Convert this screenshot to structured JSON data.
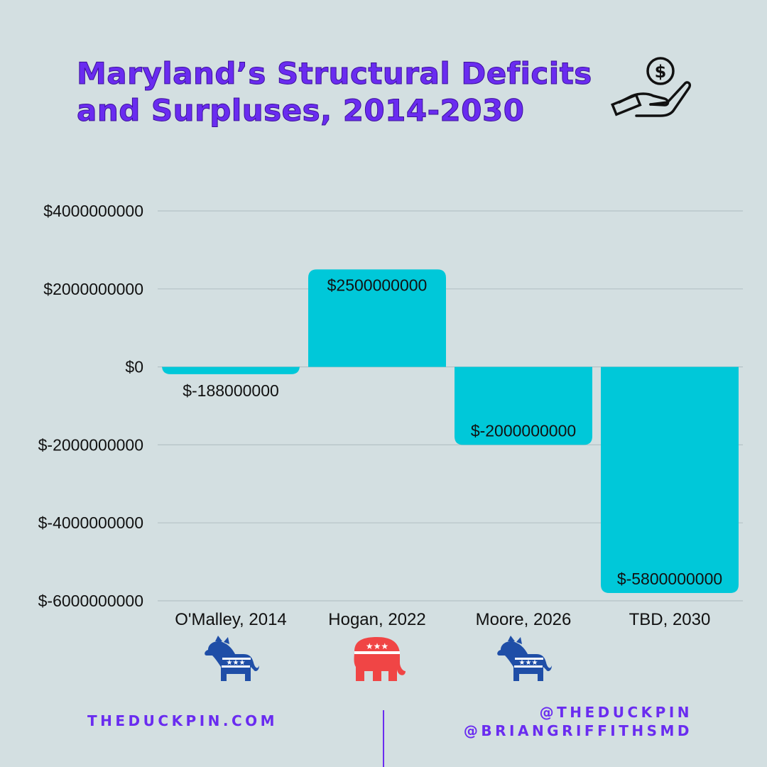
{
  "title": "Maryland’s Structural Deficits and Surpluses, 2014-2030",
  "icons": {
    "header_icon": "hand-holding-coin-icon",
    "democrat_icon": "democrat-donkey-icon",
    "republican_icon": "republican-elephant-icon"
  },
  "colors": {
    "background": "#d3dfe1",
    "title": "#6a2cf0",
    "bar": "#00c8d9",
    "democrat": "#1f4ea7",
    "republican": "#f04545",
    "accent": "#6a2cf0"
  },
  "chart_data": {
    "type": "bar",
    "categories": [
      "O'Malley, 2014",
      "Hogan, 2022",
      "Moore, 2026",
      "TBD, 2030"
    ],
    "values": [
      -188000000,
      2500000000,
      -2000000000,
      -5800000000
    ],
    "data_labels": [
      "$-188000000",
      "$2500000000",
      "$-2000000000",
      "$-5800000000"
    ],
    "yticks": [
      4000000000,
      2000000000,
      0,
      -2000000000,
      -4000000000,
      -6000000000
    ],
    "ytick_labels": [
      "$4000000000",
      "$2000000000",
      "$0",
      "$-2000000000",
      "$-4000000000",
      "$-6000000000"
    ],
    "ylim": [
      -6000000000,
      4000000000
    ],
    "grid": true,
    "title": "Maryland’s Structural Deficits and Surpluses, 2014-2030",
    "xlabel": "",
    "ylabel": ""
  },
  "party_icons": [
    "democrat",
    "republican",
    "democrat"
  ],
  "footer": {
    "left": "THEDUCKPIN.COM",
    "right_line1": "@THEDUCKPIN",
    "right_line2": "@BRIANGRIFFITHSMD"
  }
}
